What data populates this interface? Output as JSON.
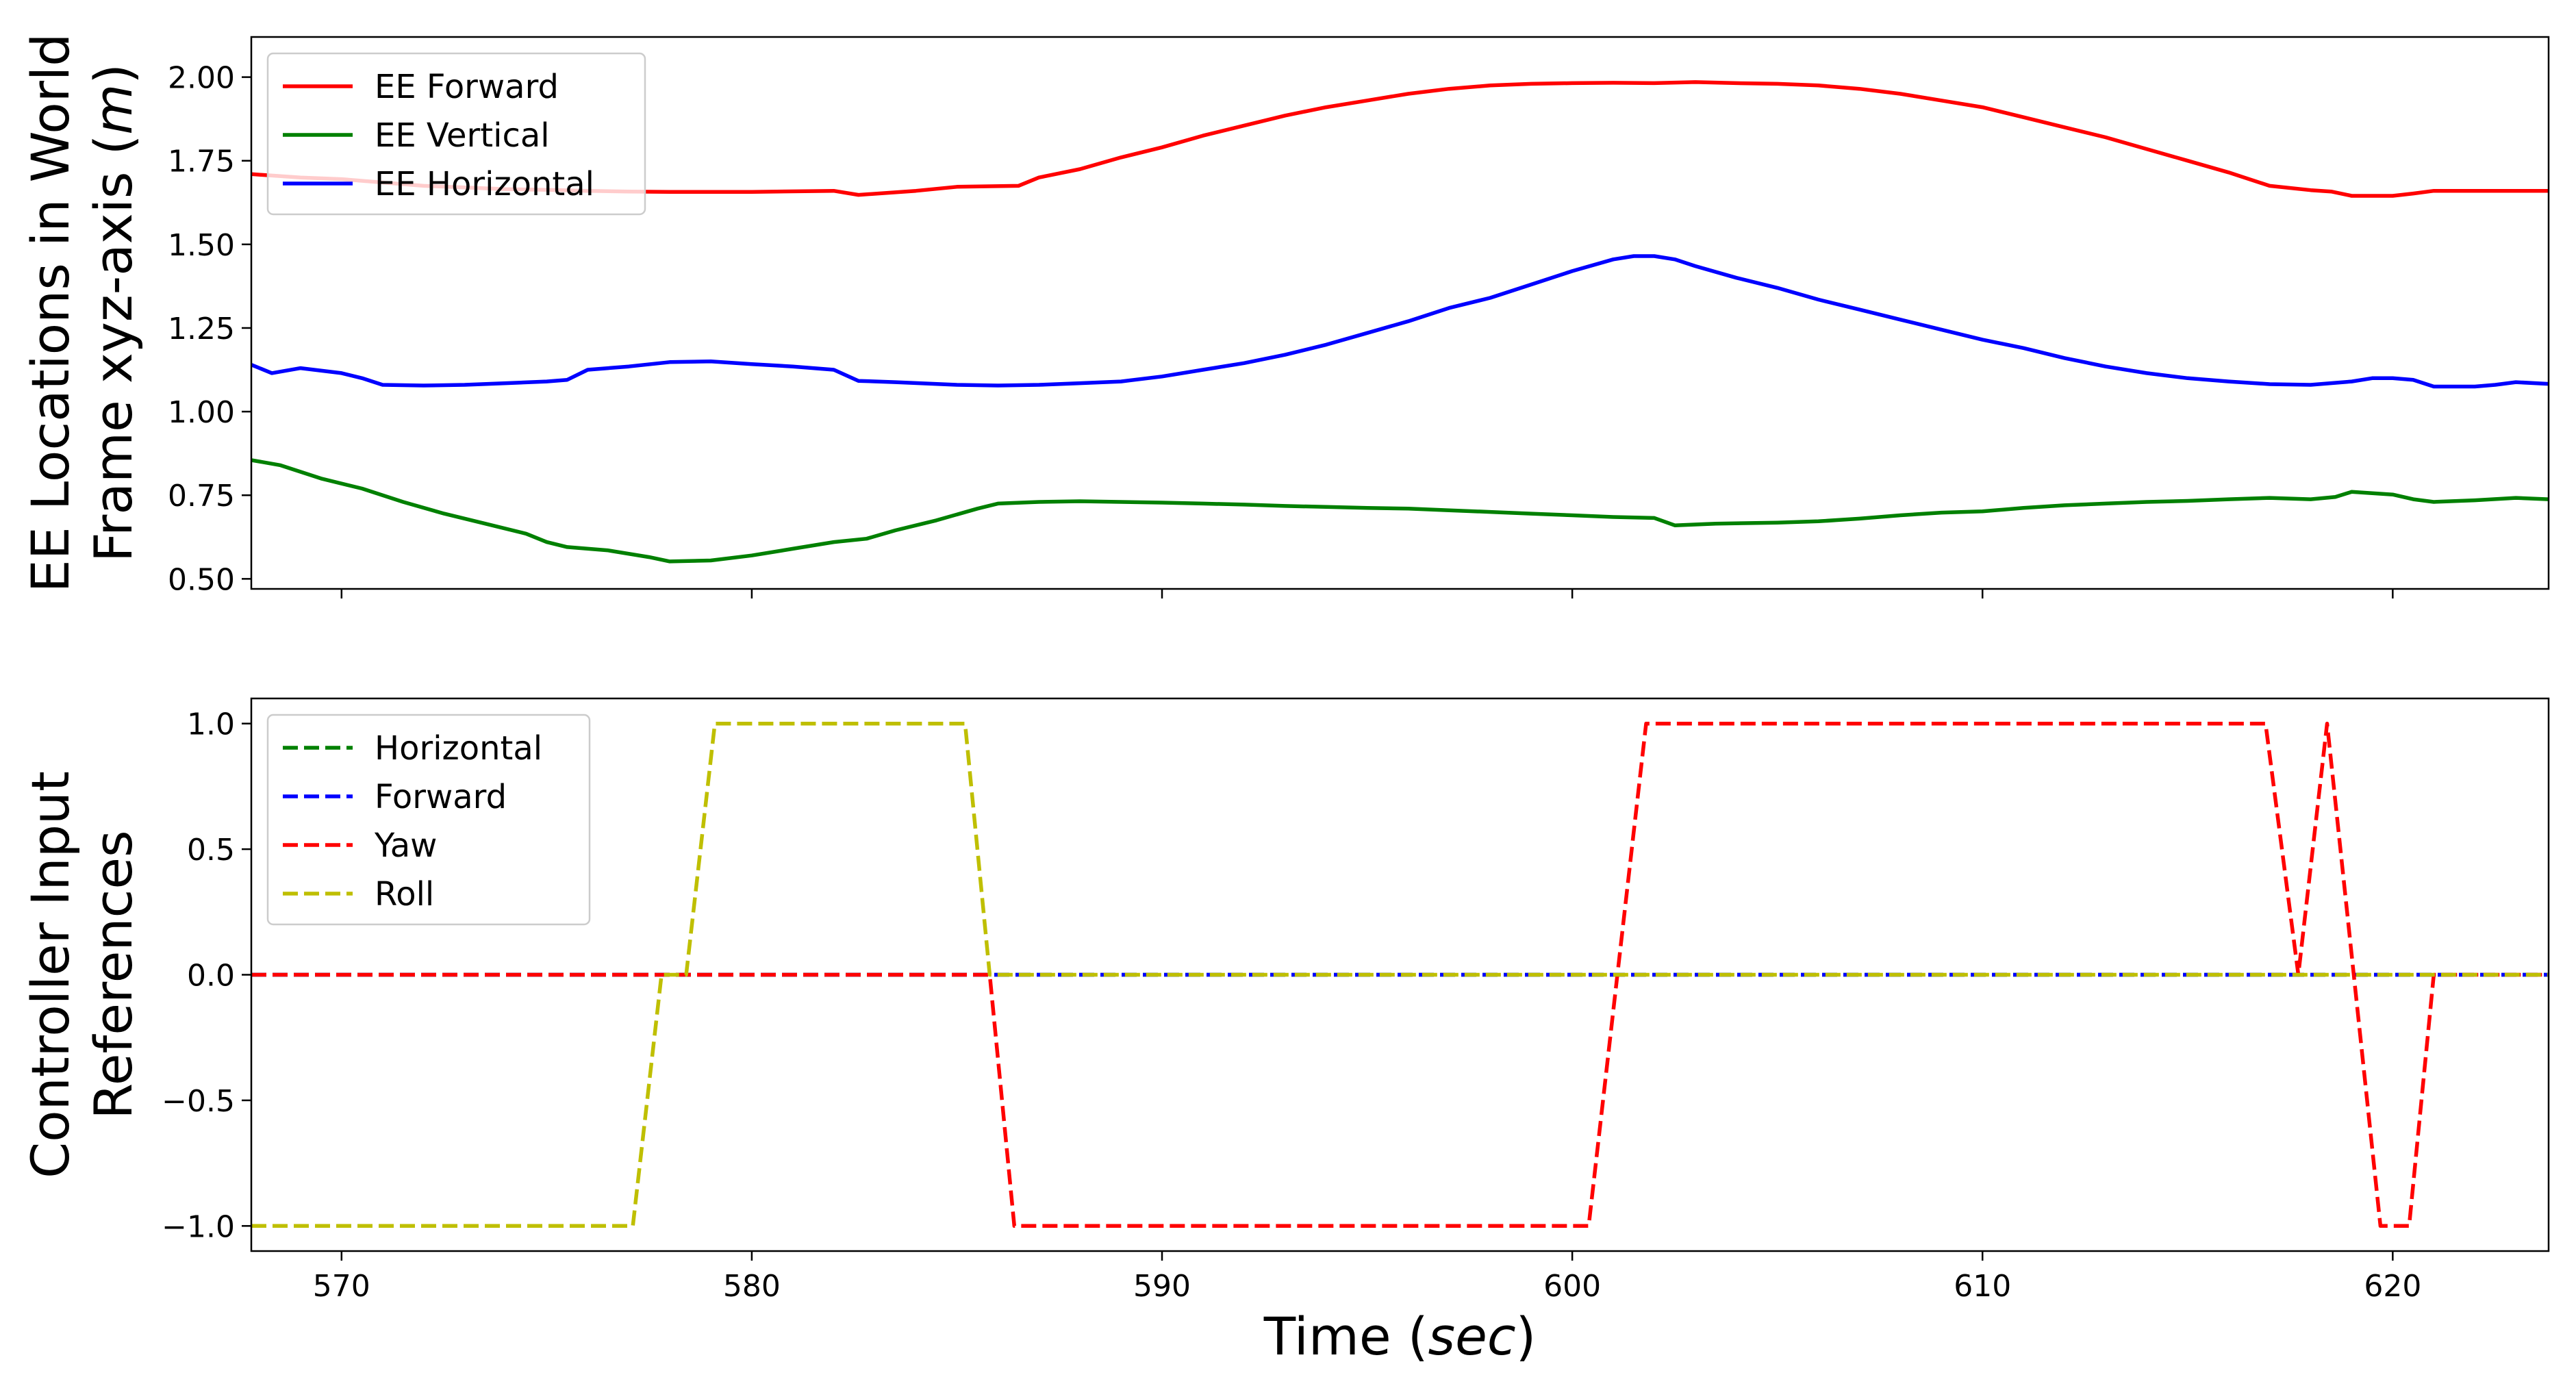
{
  "chart_data": [
    {
      "type": "line",
      "ylabel_line1": "EE Locations in World",
      "ylabel_line2": "Frame xyz-axis",
      "ylabel_unit": "m",
      "xlim": [
        567.8,
        623.8
      ],
      "ylim": [
        0.47,
        2.12
      ],
      "x_ticks": [
        570,
        580,
        590,
        600,
        610,
        620
      ],
      "y_ticks": [
        0.5,
        0.75,
        1.0,
        1.25,
        1.5,
        1.75,
        2.0
      ],
      "y_tick_labels": [
        "0.50",
        "0.75",
        "1.00",
        "1.25",
        "1.50",
        "1.75",
        "2.00"
      ],
      "legend_position": "top-left",
      "series": [
        {
          "name": "EE Forward",
          "color": "#ff0000",
          "dash": "solid",
          "points": [
            [
              567.8,
              1.71
            ],
            [
              569,
              1.7
            ],
            [
              570,
              1.695
            ],
            [
              571,
              1.685
            ],
            [
              572,
              1.675
            ],
            [
              573,
              1.67
            ],
            [
              574,
              1.665
            ],
            [
              575,
              1.663
            ],
            [
              576,
              1.66
            ],
            [
              577,
              1.658
            ],
            [
              578,
              1.657
            ],
            [
              580,
              1.657
            ],
            [
              582,
              1.66
            ],
            [
              582.6,
              1.648
            ],
            [
              584,
              1.66
            ],
            [
              585,
              1.672
            ],
            [
              586.5,
              1.675
            ],
            [
              587,
              1.7
            ],
            [
              588,
              1.725
            ],
            [
              589,
              1.76
            ],
            [
              590,
              1.79
            ],
            [
              591,
              1.825
            ],
            [
              592,
              1.855
            ],
            [
              593,
              1.885
            ],
            [
              594,
              1.91
            ],
            [
              595,
              1.93
            ],
            [
              596,
              1.95
            ],
            [
              597,
              1.965
            ],
            [
              598,
              1.975
            ],
            [
              599,
              1.98
            ],
            [
              600,
              1.982
            ],
            [
              601,
              1.983
            ],
            [
              602,
              1.982
            ],
            [
              603,
              1.985
            ],
            [
              604,
              1.982
            ],
            [
              605,
              1.98
            ],
            [
              606,
              1.975
            ],
            [
              607,
              1.965
            ],
            [
              608,
              1.95
            ],
            [
              609,
              1.93
            ],
            [
              610,
              1.91
            ],
            [
              611,
              1.88
            ],
            [
              612,
              1.85
            ],
            [
              613,
              1.82
            ],
            [
              614,
              1.785
            ],
            [
              615,
              1.75
            ],
            [
              616,
              1.715
            ],
            [
              617,
              1.675
            ],
            [
              618,
              1.662
            ],
            [
              618.5,
              1.658
            ],
            [
              619,
              1.645
            ],
            [
              620,
              1.645
            ],
            [
              620.5,
              1.652
            ],
            [
              621,
              1.66
            ],
            [
              622,
              1.66
            ],
            [
              623.8,
              1.66
            ]
          ]
        },
        {
          "name": "EE Vertical",
          "color": "#008000",
          "dash": "solid",
          "points": [
            [
              567.8,
              0.855
            ],
            [
              568.5,
              0.84
            ],
            [
              569.5,
              0.8
            ],
            [
              570.5,
              0.77
            ],
            [
              571.5,
              0.73
            ],
            [
              572.5,
              0.695
            ],
            [
              573.5,
              0.665
            ],
            [
              574.5,
              0.635
            ],
            [
              575,
              0.61
            ],
            [
              575.5,
              0.595
            ],
            [
              576.5,
              0.585
            ],
            [
              577.5,
              0.565
            ],
            [
              578,
              0.552
            ],
            [
              579,
              0.555
            ],
            [
              580,
              0.57
            ],
            [
              581,
              0.59
            ],
            [
              582,
              0.61
            ],
            [
              582.8,
              0.62
            ],
            [
              583.5,
              0.645
            ],
            [
              584.5,
              0.675
            ],
            [
              585.5,
              0.71
            ],
            [
              586,
              0.725
            ],
            [
              587,
              0.73
            ],
            [
              588,
              0.732
            ],
            [
              589,
              0.73
            ],
            [
              590,
              0.728
            ],
            [
              591,
              0.725
            ],
            [
              592,
              0.722
            ],
            [
              593,
              0.718
            ],
            [
              594,
              0.715
            ],
            [
              595,
              0.712
            ],
            [
              596,
              0.71
            ],
            [
              597,
              0.705
            ],
            [
              598,
              0.7
            ],
            [
              599,
              0.695
            ],
            [
              600,
              0.69
            ],
            [
              601,
              0.685
            ],
            [
              602,
              0.682
            ],
            [
              602.5,
              0.66
            ],
            [
              603.5,
              0.665
            ],
            [
              605,
              0.668
            ],
            [
              606,
              0.672
            ],
            [
              607,
              0.68
            ],
            [
              608,
              0.69
            ],
            [
              609,
              0.698
            ],
            [
              610,
              0.702
            ],
            [
              611,
              0.712
            ],
            [
              612,
              0.72
            ],
            [
              613,
              0.725
            ],
            [
              614,
              0.73
            ],
            [
              615,
              0.733
            ],
            [
              616,
              0.738
            ],
            [
              617,
              0.742
            ],
            [
              618,
              0.738
            ],
            [
              618.6,
              0.745
            ],
            [
              619,
              0.76
            ],
            [
              620,
              0.752
            ],
            [
              620.5,
              0.738
            ],
            [
              621,
              0.73
            ],
            [
              622,
              0.735
            ],
            [
              623,
              0.742
            ],
            [
              623.8,
              0.738
            ]
          ]
        },
        {
          "name": "EE Horizontal",
          "color": "#0000ff",
          "dash": "solid",
          "points": [
            [
              567.8,
              1.14
            ],
            [
              568.3,
              1.115
            ],
            [
              569,
              1.13
            ],
            [
              570,
              1.115
            ],
            [
              570.5,
              1.1
            ],
            [
              571,
              1.08
            ],
            [
              572,
              1.078
            ],
            [
              573,
              1.08
            ],
            [
              574,
              1.085
            ],
            [
              575,
              1.09
            ],
            [
              575.5,
              1.095
            ],
            [
              576,
              1.125
            ],
            [
              577,
              1.135
            ],
            [
              578,
              1.148
            ],
            [
              579,
              1.15
            ],
            [
              580,
              1.142
            ],
            [
              581,
              1.135
            ],
            [
              582,
              1.125
            ],
            [
              582.6,
              1.092
            ],
            [
              583.5,
              1.088
            ],
            [
              585,
              1.08
            ],
            [
              586,
              1.078
            ],
            [
              587,
              1.08
            ],
            [
              588,
              1.085
            ],
            [
              589,
              1.09
            ],
            [
              590,
              1.105
            ],
            [
              591,
              1.125
            ],
            [
              592,
              1.145
            ],
            [
              593,
              1.17
            ],
            [
              594,
              1.2
            ],
            [
              595,
              1.235
            ],
            [
              596,
              1.27
            ],
            [
              597,
              1.31
            ],
            [
              598,
              1.34
            ],
            [
              599,
              1.38
            ],
            [
              600,
              1.42
            ],
            [
              601,
              1.455
            ],
            [
              601.5,
              1.465
            ],
            [
              602,
              1.465
            ],
            [
              602.5,
              1.455
            ],
            [
              603,
              1.435
            ],
            [
              604,
              1.4
            ],
            [
              605,
              1.37
            ],
            [
              606,
              1.335
            ],
            [
              607,
              1.305
            ],
            [
              608,
              1.275
            ],
            [
              609,
              1.245
            ],
            [
              610,
              1.215
            ],
            [
              611,
              1.19
            ],
            [
              612,
              1.16
            ],
            [
              613,
              1.135
            ],
            [
              614,
              1.115
            ],
            [
              615,
              1.1
            ],
            [
              616,
              1.09
            ],
            [
              617,
              1.082
            ],
            [
              618,
              1.08
            ],
            [
              619,
              1.09
            ],
            [
              619.5,
              1.1
            ],
            [
              620,
              1.1
            ],
            [
              620.5,
              1.095
            ],
            [
              621,
              1.075
            ],
            [
              622,
              1.075
            ],
            [
              622.5,
              1.08
            ],
            [
              623,
              1.088
            ],
            [
              623.8,
              1.083
            ]
          ]
        }
      ]
    },
    {
      "type": "line",
      "ylabel_line1": "Controller Input",
      "ylabel_line2": "References",
      "xlabel_prefix": "Time (",
      "xlabel_unit": "sec",
      "xlabel_suffix": ")",
      "xlim": [
        567.8,
        623.8
      ],
      "ylim": [
        -1.1,
        1.1
      ],
      "x_ticks": [
        570,
        580,
        590,
        600,
        610,
        620
      ],
      "x_tick_labels": [
        "570",
        "580",
        "590",
        "600",
        "610",
        "620"
      ],
      "y_ticks": [
        -1.0,
        -0.5,
        0.0,
        0.5,
        1.0
      ],
      "y_tick_labels": [
        "−1.0",
        "−0.5",
        "0.0",
        "0.5",
        "1.0"
      ],
      "legend_position": "top-left",
      "series": [
        {
          "name": "Horizontal",
          "color": "#008000",
          "dash": "dashed",
          "points": [
            [
              567.8,
              0.0
            ],
            [
              623.8,
              0.0
            ]
          ]
        },
        {
          "name": "Forward",
          "color": "#0000ff",
          "dash": "dashed",
          "points": [
            [
              567.8,
              0.0
            ],
            [
              623.8,
              0.0
            ]
          ]
        },
        {
          "name": "Yaw",
          "color": "#ff0000",
          "dash": "dashed",
          "points": [
            [
              567.8,
              0.0
            ],
            [
              585.8,
              0.0
            ],
            [
              586.4,
              -1.0
            ],
            [
              600.4,
              -1.0
            ],
            [
              601.8,
              1.0
            ],
            [
              616.9,
              1.0
            ],
            [
              617.7,
              0.0
            ],
            [
              618.4,
              1.0
            ],
            [
              619.7,
              -1.0
            ],
            [
              620.4,
              -1.0
            ],
            [
              621,
              0.0
            ],
            [
              623.8,
              0.0
            ]
          ]
        },
        {
          "name": "Roll",
          "color": "#bfbf00",
          "dash": "dashed",
          "points": [
            [
              567.8,
              -1.0
            ],
            [
              577.1,
              -1.0
            ],
            [
              577.8,
              0.0
            ],
            [
              578.4,
              0.0
            ],
            [
              579.1,
              1.0
            ],
            [
              585.2,
              1.0
            ],
            [
              585.8,
              0.0
            ],
            [
              623.8,
              0.0
            ]
          ]
        }
      ]
    }
  ]
}
